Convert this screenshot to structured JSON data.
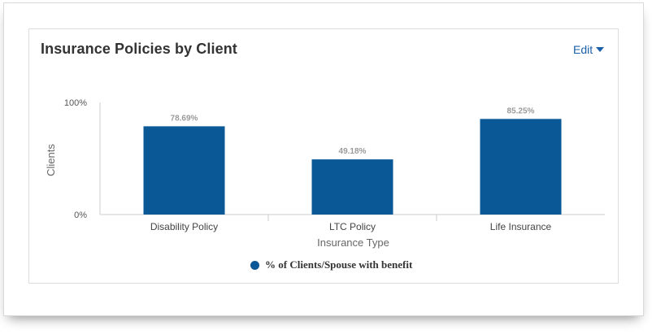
{
  "card": {
    "title": "Insurance Policies by Client",
    "edit_label": "Edit",
    "edit_icon": "caret-down-icon"
  },
  "colors": {
    "bar": "#0a5896",
    "edit": "#1a5fa8",
    "data_label": "#9a9a9a"
  },
  "chart_data": {
    "type": "bar",
    "categories": [
      "Disability Policy",
      "LTC Policy",
      "Life Insurance"
    ],
    "series": [
      {
        "name": "% of Clients/Spouse with benefit",
        "values": [
          78.69,
          49.18,
          85.25
        ]
      }
    ],
    "data_labels": [
      "78.69%",
      "49.18%",
      "85.25%"
    ],
    "xlabel": "Insurance Type",
    "ylabel": "Clients",
    "ylim": [
      0,
      100
    ],
    "y_ticks": [
      "0%",
      "100%"
    ],
    "legend_position": "bottom",
    "grid": false
  }
}
